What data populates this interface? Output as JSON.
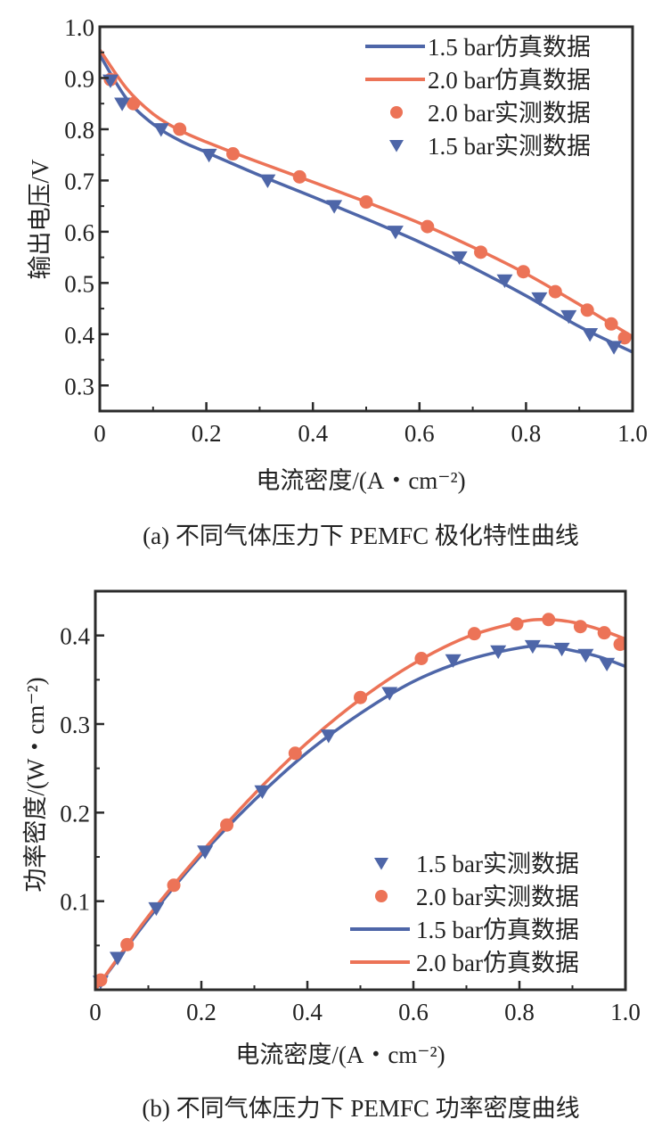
{
  "colors": {
    "blue": "#4e66a8",
    "orange": "#ec7357",
    "axis": "#2b2b2b"
  },
  "chart_data": [
    {
      "type": "line",
      "caption": "(a) 不同气体压力下 PEMFC 极化特性曲线",
      "xlabel": "电流密度/(A・cm⁻²)",
      "ylabel": "输出电压/V",
      "xlim": [
        0,
        1.0
      ],
      "ylim": [
        0.25,
        1.0
      ],
      "xticks": [
        "0",
        "0.2",
        "0.4",
        "0.6",
        "0.8",
        "1.0"
      ],
      "xtick_values": [
        0,
        0.2,
        0.4,
        0.6,
        0.8,
        1.0
      ],
      "yticks": [
        "0.3",
        "0.4",
        "0.5",
        "0.6",
        "0.7",
        "0.8",
        "0.9",
        "1.0"
      ],
      "ytick_values": [
        0.3,
        0.4,
        0.5,
        0.6,
        0.7,
        0.8,
        0.9,
        1.0
      ],
      "grid": false,
      "legend_position": "top-right",
      "legend": [
        "1.5 bar仿真数据",
        "2.0 bar仿真数据",
        "2.0 bar实测数据",
        "1.5 bar实测数据"
      ],
      "series": [
        {
          "name": "1.5 bar仿真数据",
          "kind": "line",
          "color": "#4e66a8",
          "x": [
            0,
            0.05,
            0.1,
            0.15,
            0.2,
            0.3,
            0.4,
            0.5,
            0.6,
            0.7,
            0.8,
            0.9,
            1.0
          ],
          "y": [
            0.945,
            0.86,
            0.81,
            0.778,
            0.755,
            0.71,
            0.668,
            0.625,
            0.58,
            0.53,
            0.475,
            0.415,
            0.365
          ]
        },
        {
          "name": "2.0 bar仿真数据",
          "kind": "line",
          "color": "#ec7357",
          "x": [
            0,
            0.05,
            0.1,
            0.15,
            0.2,
            0.3,
            0.4,
            0.5,
            0.6,
            0.7,
            0.8,
            0.9,
            1.0
          ],
          "y": [
            0.955,
            0.88,
            0.83,
            0.798,
            0.775,
            0.735,
            0.697,
            0.658,
            0.617,
            0.57,
            0.518,
            0.458,
            0.395
          ]
        },
        {
          "name": "2.0 bar实测数据",
          "kind": "circle",
          "color": "#ec7357",
          "x": [
            0.02,
            0.063,
            0.15,
            0.25,
            0.375,
            0.5,
            0.615,
            0.715,
            0.795,
            0.855,
            0.915,
            0.96,
            0.985
          ],
          "y": [
            0.897,
            0.85,
            0.8,
            0.752,
            0.707,
            0.658,
            0.61,
            0.56,
            0.522,
            0.483,
            0.447,
            0.42,
            0.393
          ]
        },
        {
          "name": "1.5 bar实测数据",
          "kind": "triangle",
          "color": "#4e66a8",
          "x": [
            0.02,
            0.042,
            0.115,
            0.205,
            0.315,
            0.44,
            0.555,
            0.675,
            0.76,
            0.825,
            0.88,
            0.92,
            0.965
          ],
          "y": [
            0.895,
            0.85,
            0.8,
            0.75,
            0.7,
            0.65,
            0.6,
            0.55,
            0.505,
            0.47,
            0.435,
            0.4,
            0.375
          ]
        }
      ]
    },
    {
      "type": "line",
      "caption": "(b) 不同气体压力下 PEMFC 功率密度曲线",
      "xlabel": "电流密度/(A・cm⁻²)",
      "ylabel": "功率密度/(W・cm⁻²)",
      "xlim": [
        0,
        1.0
      ],
      "ylim": [
        0,
        0.45
      ],
      "xticks": [
        "0",
        "0.2",
        "0.4",
        "0.6",
        "0.8",
        "1.0"
      ],
      "xtick_values": [
        0,
        0.2,
        0.4,
        0.6,
        0.8,
        1.0
      ],
      "yticks": [
        "0.1",
        "0.2",
        "0.3",
        "0.4"
      ],
      "ytick_values": [
        0.1,
        0.2,
        0.3,
        0.4
      ],
      "grid": false,
      "legend_position": "bottom-right",
      "legend": [
        "1.5 bar实测数据",
        "2.0 bar实测数据",
        "1.5 bar仿真数据",
        "2.0 bar仿真数据"
      ],
      "series": [
        {
          "name": "1.5 bar实测数据",
          "kind": "triangle",
          "color": "#4e66a8",
          "x": [
            0.01,
            0.042,
            0.115,
            0.207,
            0.315,
            0.44,
            0.555,
            0.675,
            0.76,
            0.825,
            0.88,
            0.925,
            0.965
          ],
          "y": [
            0.009,
            0.036,
            0.092,
            0.156,
            0.224,
            0.287,
            0.335,
            0.372,
            0.382,
            0.388,
            0.385,
            0.378,
            0.368
          ]
        },
        {
          "name": "2.0 bar实测数据",
          "kind": "circle",
          "color": "#ec7357",
          "x": [
            0.01,
            0.06,
            0.148,
            0.248,
            0.377,
            0.5,
            0.615,
            0.715,
            0.795,
            0.855,
            0.915,
            0.96,
            0.99
          ],
          "y": [
            0.011,
            0.051,
            0.118,
            0.186,
            0.267,
            0.33,
            0.374,
            0.402,
            0.413,
            0.418,
            0.41,
            0.403,
            0.39
          ]
        },
        {
          "name": "1.5 bar仿真数据",
          "kind": "line",
          "color": "#4e66a8",
          "x": [
            0,
            0.1,
            0.2,
            0.3,
            0.4,
            0.5,
            0.6,
            0.7,
            0.8,
            0.85,
            0.9,
            0.95,
            1.0
          ],
          "y": [
            0.0,
            0.08,
            0.152,
            0.214,
            0.268,
            0.312,
            0.348,
            0.372,
            0.386,
            0.388,
            0.383,
            0.376,
            0.365
          ]
        },
        {
          "name": "2.0 bar仿真数据",
          "kind": "line",
          "color": "#ec7357",
          "x": [
            0,
            0.1,
            0.2,
            0.3,
            0.4,
            0.5,
            0.6,
            0.7,
            0.8,
            0.85,
            0.9,
            0.95,
            1.0
          ],
          "y": [
            0.0,
            0.083,
            0.155,
            0.221,
            0.279,
            0.328,
            0.368,
            0.398,
            0.415,
            0.418,
            0.415,
            0.407,
            0.396
          ]
        }
      ]
    }
  ]
}
